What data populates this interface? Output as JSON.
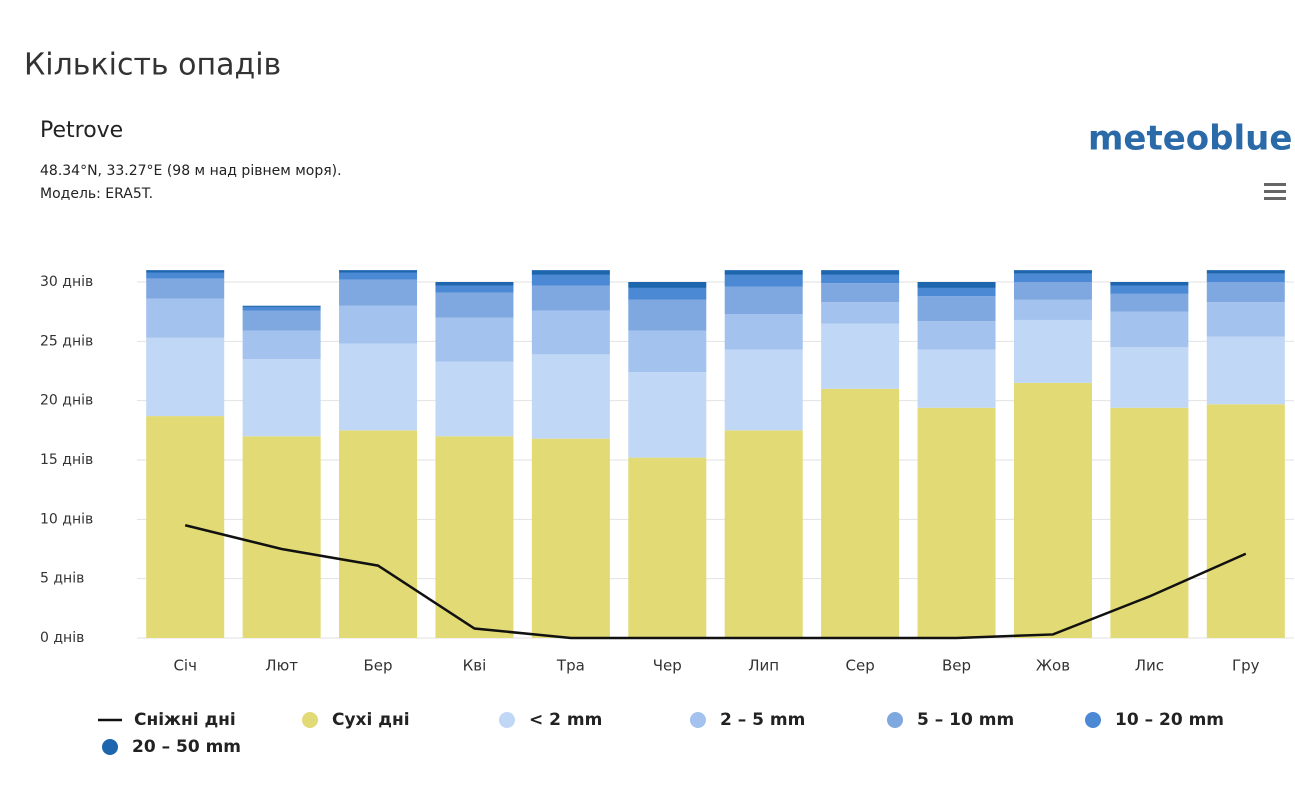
{
  "chart_data": {
    "type": "bar",
    "stacked": true,
    "title": "Кількість опадів",
    "location": "Petrove",
    "coordinates": "48.34°N, 33.27°E (98 м над рівнем моря).",
    "model": "Модель: ERA5T.",
    "brand": "meteoblue",
    "categories": [
      "Січ",
      "Лют",
      "Бер",
      "Кві",
      "Тра",
      "Чер",
      "Лип",
      "Сер",
      "Вер",
      "Жов",
      "Лис",
      "Гру"
    ],
    "ylim": [
      0,
      30
    ],
    "yticks": [
      {
        "value": 0,
        "label": "0 днів"
      },
      {
        "value": 5,
        "label": "5 днів"
      },
      {
        "value": 10,
        "label": "10 днів"
      },
      {
        "value": 15,
        "label": "15 днів"
      },
      {
        "value": 20,
        "label": "20 днів"
      },
      {
        "value": 25,
        "label": "25 днів"
      },
      {
        "value": 30,
        "label": "30 днів"
      }
    ],
    "grid": true,
    "series": [
      {
        "name": "Сніжні дні",
        "type": "line",
        "color": "#111111",
        "values": [
          9.5,
          7.5,
          6.1,
          0.8,
          0,
          0,
          0,
          0,
          0,
          0.3,
          3.5,
          7.1
        ]
      },
      {
        "name": "Сухі дні",
        "color": "#e2da74",
        "values": [
          18.7,
          17.0,
          17.5,
          17.0,
          16.8,
          15.2,
          17.5,
          21.0,
          19.4,
          21.5,
          19.4,
          19.7
        ]
      },
      {
        "name": "< 2 mm",
        "color": "#c0d7f6",
        "values": [
          6.6,
          6.5,
          7.3,
          6.3,
          7.1,
          7.2,
          6.8,
          5.5,
          4.9,
          5.3,
          5.1,
          5.7
        ]
      },
      {
        "name": "2 – 5 mm",
        "color": "#a4c2ee",
        "values": [
          3.3,
          2.4,
          3.2,
          3.7,
          3.7,
          3.5,
          3.0,
          1.8,
          2.4,
          1.7,
          3.0,
          2.9
        ]
      },
      {
        "name": "5 – 10 mm",
        "color": "#7fa8e0",
        "values": [
          1.7,
          1.7,
          2.2,
          2.1,
          2.1,
          2.6,
          2.3,
          1.6,
          2.1,
          1.5,
          1.5,
          1.7
        ]
      },
      {
        "name": "10 – 20 mm",
        "color": "#4c89d5",
        "values": [
          0.5,
          0.3,
          0.6,
          0.6,
          0.9,
          1.0,
          1.0,
          0.7,
          0.7,
          0.7,
          0.7,
          0.7
        ]
      },
      {
        "name": "20 – 50 mm",
        "color": "#1d66ae",
        "values": [
          0.2,
          0.1,
          0.2,
          0.3,
          0.4,
          0.5,
          0.4,
          0.4,
          0.5,
          0.3,
          0.3,
          0.3
        ]
      }
    ]
  }
}
